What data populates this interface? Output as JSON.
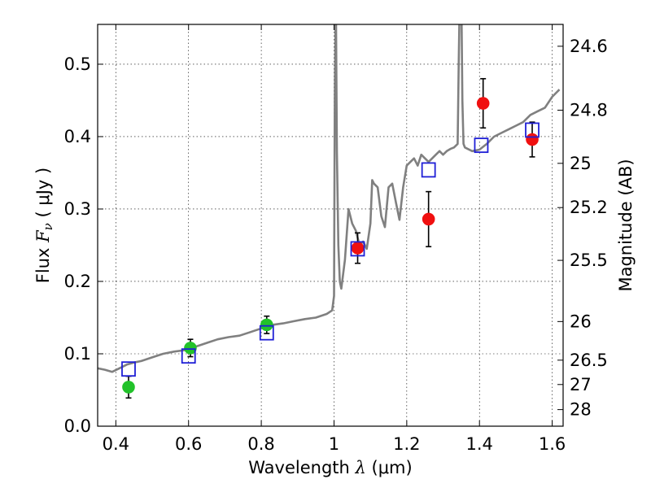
{
  "chart_data": {
    "type": "scatter",
    "title": "",
    "xlabel": "Wavelength",
    "xlabel_symbol": "λ",
    "xlabel_unit": "(μm)",
    "ylabel": "Flux",
    "ylabel_symbol": "F",
    "ylabel_subscript": "ν",
    "ylabel_unit": "( μJy )",
    "y2label": "Magnitude (AB)",
    "xlim": [
      0.35,
      1.63
    ],
    "ylim": [
      0.0,
      0.555
    ],
    "grid": true,
    "x_ticks": [
      0.4,
      0.6,
      0.8,
      1.0,
      1.2,
      1.4,
      1.6
    ],
    "x_tick_labels": [
      "0.4",
      "0.6",
      "0.8",
      "1",
      "1.2",
      "1.4",
      "1.6"
    ],
    "y_ticks": [
      0.0,
      0.1,
      0.2,
      0.3,
      0.4,
      0.5
    ],
    "y_tick_labels": [
      "0.0",
      "0.1",
      "0.2",
      "0.3",
      "0.4",
      "0.5"
    ],
    "y2_ticks": [
      {
        "label": "24.6",
        "mag": 24.6
      },
      {
        "label": "24.8",
        "mag": 24.8
      },
      {
        "label": "25",
        "mag": 25.0
      },
      {
        "label": "25.2",
        "mag": 25.2
      },
      {
        "label": "25.5",
        "mag": 25.5
      },
      {
        "label": "26",
        "mag": 26.0
      },
      {
        "label": "26.5",
        "mag": 26.5
      },
      {
        "label": "27",
        "mag": 27.0
      },
      {
        "label": "28",
        "mag": 28.0
      }
    ],
    "series": [
      {
        "kind": "line",
        "color": "#808080",
        "x": [
          0.35,
          0.37,
          0.39,
          0.41,
          0.43,
          0.45,
          0.47,
          0.5,
          0.53,
          0.56,
          0.59,
          0.62,
          0.65,
          0.68,
          0.71,
          0.74,
          0.77,
          0.8,
          0.83,
          0.86,
          0.89,
          0.92,
          0.95,
          0.98,
          0.995,
          1.0,
          1.002,
          1.005,
          1.008,
          1.012,
          1.016,
          1.02,
          1.03,
          1.04,
          1.05,
          1.06,
          1.07,
          1.08,
          1.09,
          1.1,
          1.105,
          1.11,
          1.12,
          1.13,
          1.14,
          1.15,
          1.16,
          1.17,
          1.18,
          1.19,
          1.2,
          1.21,
          1.22,
          1.23,
          1.24,
          1.25,
          1.26,
          1.27,
          1.28,
          1.29,
          1.3,
          1.31,
          1.32,
          1.33,
          1.34,
          1.343,
          1.346,
          1.35,
          1.353,
          1.356,
          1.36,
          1.38,
          1.4,
          1.42,
          1.44,
          1.46,
          1.48,
          1.5,
          1.52,
          1.54,
          1.56,
          1.58,
          1.6,
          1.62
        ],
        "y": [
          0.08,
          0.078,
          0.075,
          0.08,
          0.085,
          0.088,
          0.09,
          0.095,
          0.1,
          0.103,
          0.105,
          0.11,
          0.115,
          0.12,
          0.123,
          0.125,
          0.13,
          0.135,
          0.14,
          0.142,
          0.145,
          0.148,
          0.15,
          0.155,
          0.16,
          0.18,
          0.45,
          0.6,
          0.38,
          0.25,
          0.2,
          0.19,
          0.23,
          0.3,
          0.28,
          0.27,
          0.25,
          0.255,
          0.245,
          0.28,
          0.34,
          0.335,
          0.33,
          0.29,
          0.275,
          0.33,
          0.335,
          0.31,
          0.285,
          0.33,
          0.36,
          0.365,
          0.37,
          0.36,
          0.375,
          0.37,
          0.365,
          0.37,
          0.375,
          0.38,
          0.375,
          0.38,
          0.383,
          0.385,
          0.39,
          0.5,
          0.6,
          0.6,
          0.45,
          0.39,
          0.385,
          0.38,
          0.382,
          0.39,
          0.4,
          0.405,
          0.41,
          0.415,
          0.42,
          0.43,
          0.435,
          0.44,
          0.455,
          0.465
        ]
      },
      {
        "kind": "errorbar",
        "color": "#22c22a",
        "x": [
          0.435,
          0.605,
          0.815
        ],
        "y": [
          0.054,
          0.108,
          0.14
        ],
        "err": [
          0.015,
          0.012,
          0.012
        ]
      },
      {
        "kind": "errorbar",
        "color": "#f01010",
        "x": [
          1.065,
          1.26,
          1.41,
          1.545
        ],
        "y": [
          0.246,
          0.286,
          0.446,
          0.396
        ],
        "err": [
          0.021,
          0.038,
          0.034,
          0.024
        ]
      },
      {
        "kind": "squares",
        "color": "#1f1fd6",
        "x": [
          0.435,
          0.6,
          0.815,
          1.065,
          1.26,
          1.405,
          1.545
        ],
        "y": [
          0.079,
          0.097,
          0.129,
          0.245,
          0.354,
          0.388,
          0.409
        ]
      }
    ]
  }
}
